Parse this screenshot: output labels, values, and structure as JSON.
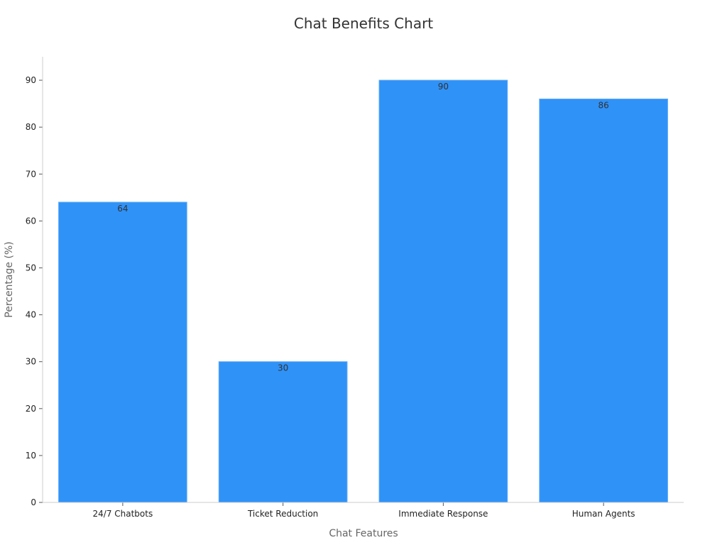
{
  "chart_data": {
    "type": "bar",
    "title": "Chat Benefits Chart",
    "xlabel": "Chat Features",
    "ylabel": "Percentage (%)",
    "categories": [
      "24/7 Chatbots",
      "Ticket Reduction",
      "Immediate Response",
      "Human Agents"
    ],
    "values": [
      64,
      30,
      90,
      86
    ],
    "data_labels": [
      "64",
      "30",
      "90",
      "86"
    ],
    "ylim": [
      0,
      95
    ],
    "yticks": [
      0,
      10,
      20,
      30,
      40,
      50,
      60,
      70,
      80,
      90
    ],
    "grid": false,
    "legend": "none",
    "bar_color": "#2f92f7"
  }
}
